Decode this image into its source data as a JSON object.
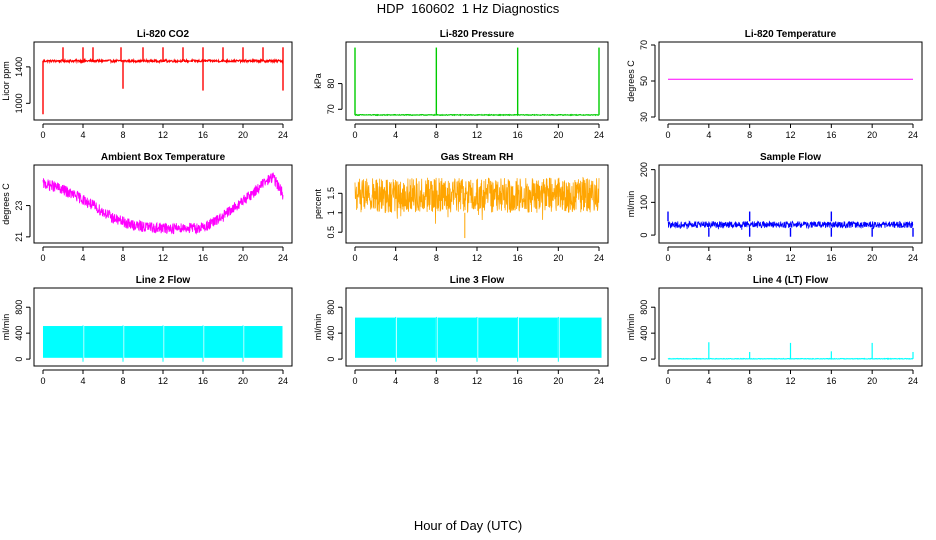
{
  "figure": {
    "title": "HDP  160602  1 Hz Diagnostics",
    "xlabel": "Hour of Day (UTC)"
  },
  "chart_data": [
    {
      "type": "line",
      "title": "Li-820 CO2",
      "ylabel": "Licor ppm",
      "color": "#ff0000",
      "xlim": [
        0,
        24
      ],
      "ylim": [
        850,
        1640
      ],
      "xticks": [
        0,
        4,
        8,
        12,
        16,
        20,
        24
      ],
      "yticks": [
        1000,
        1400
      ],
      "baseline": 1465,
      "noise": 25,
      "spikes_up": [
        2,
        4,
        5,
        7.8,
        10,
        12,
        14,
        16,
        18,
        20,
        22,
        24
      ],
      "spike_up_to": 1615,
      "dips": [
        {
          "x": 0.0,
          "y": 880
        },
        {
          "x": 8.0,
          "y": 1160
        },
        {
          "x": 16.0,
          "y": 1140
        },
        {
          "x": 24.0,
          "y": 1140
        }
      ]
    },
    {
      "type": "line",
      "title": "Li-820 Pressure",
      "ylabel": "kPa",
      "color": "#00cc00",
      "xlim": [
        0,
        24
      ],
      "ylim": [
        67,
        95
      ],
      "xticks": [
        0,
        4,
        8,
        12,
        16,
        20,
        24
      ],
      "yticks": [
        70,
        80
      ],
      "baseline": 67.8,
      "noise": 0.3,
      "spikes_up": [
        0,
        8,
        16,
        24
      ],
      "spike_up_to": 94
    },
    {
      "type": "line",
      "title": "Li-820 Temperature",
      "ylabel": "degrees C",
      "color": "#ff00ff",
      "xlim": [
        0,
        24
      ],
      "ylim": [
        30,
        70
      ],
      "xticks": [
        0,
        4,
        8,
        12,
        16,
        20,
        24
      ],
      "yticks": [
        30,
        50,
        70
      ],
      "x": [
        0,
        24
      ],
      "y": [
        51,
        51
      ]
    },
    {
      "type": "line",
      "title": "Ambient Box Temperature",
      "ylabel": "degrees C",
      "color": "#ff00ff",
      "xlim": [
        0,
        24
      ],
      "ylim": [
        20.8,
        25.4
      ],
      "xticks": [
        0,
        4,
        8,
        12,
        16,
        20,
        24
      ],
      "yticks": [
        21,
        23
      ],
      "x": [
        0,
        1,
        2,
        3,
        4,
        5,
        6,
        7,
        8,
        9,
        10,
        11,
        12,
        13,
        14,
        15,
        16,
        17,
        18,
        19,
        20,
        21,
        22,
        23,
        23.5,
        24
      ],
      "y": [
        24.4,
        24.25,
        24.0,
        23.7,
        23.4,
        23.0,
        22.6,
        22.2,
        21.95,
        21.75,
        21.65,
        21.6,
        21.55,
        21.55,
        21.6,
        21.55,
        21.6,
        21.9,
        22.3,
        22.8,
        23.3,
        23.8,
        24.4,
        24.85,
        24.3,
        23.7
      ],
      "noise": 0.35
    },
    {
      "type": "line",
      "title": "Gas Stream RH",
      "ylabel": "percent",
      "color": "#ffa500",
      "xlim": [
        0,
        24
      ],
      "ylim": [
        0.3,
        2.15
      ],
      "xticks": [
        0,
        4,
        8,
        12,
        16,
        20,
        24
      ],
      "yticks": [
        0.5,
        1.0,
        1.5
      ],
      "band": [
        1.0,
        1.9
      ],
      "outliers": [
        {
          "x": 10.8,
          "y": 0.35
        }
      ]
    },
    {
      "type": "line",
      "title": "Sample Flow",
      "ylabel": "ml/min",
      "color": "#0000ff",
      "xlim": [
        0,
        24
      ],
      "ylim": [
        -15,
        205
      ],
      "xticks": [
        0,
        4,
        8,
        12,
        16,
        20,
        24
      ],
      "yticks": [
        0,
        100,
        200
      ],
      "band": [
        22,
        42
      ],
      "spikes_up": [
        0,
        8,
        16
      ],
      "spike_up_to": 72,
      "dips_at": [
        4,
        8,
        12,
        16,
        20,
        24
      ],
      "dip_to": -5
    },
    {
      "type": "area",
      "title": "Line 2 Flow",
      "ylabel": "ml/min",
      "color": "#00ffff",
      "xlim": [
        0,
        24
      ],
      "ylim": [
        -60,
        1050
      ],
      "xticks": [
        0,
        4,
        8,
        12,
        16,
        20,
        24
      ],
      "yticks": [
        0,
        400,
        800
      ],
      "start": 0,
      "end": 24,
      "band": [
        20,
        510
      ],
      "gaps": [
        4,
        8,
        12,
        16,
        20
      ]
    },
    {
      "type": "area",
      "title": "Line 3 Flow",
      "ylabel": "ml/min",
      "color": "#00ffff",
      "xlim": [
        0,
        24
      ],
      "ylim": [
        -60,
        1050
      ],
      "xticks": [
        0,
        4,
        8,
        12,
        16,
        20,
        24
      ],
      "yticks": [
        0,
        400,
        800
      ],
      "start": 0,
      "end": 24.3,
      "band": [
        20,
        640
      ],
      "gaps": [
        4,
        8,
        12,
        16,
        20
      ]
    },
    {
      "type": "line",
      "title": "Line 4 (LT) Flow",
      "ylabel": "ml/min",
      "color": "#00ffff",
      "xlim": [
        0,
        24
      ],
      "ylim": [
        -60,
        1050
      ],
      "xticks": [
        0,
        4,
        8,
        12,
        16,
        20,
        24
      ],
      "yticks": [
        0,
        400,
        800
      ],
      "baseline": 5,
      "noise": 8,
      "spikes": [
        {
          "x": 4,
          "y": 260
        },
        {
          "x": 8,
          "y": 110
        },
        {
          "x": 12,
          "y": 250
        },
        {
          "x": 16,
          "y": 120
        },
        {
          "x": 20,
          "y": 250
        },
        {
          "x": 24,
          "y": 110
        }
      ]
    }
  ]
}
